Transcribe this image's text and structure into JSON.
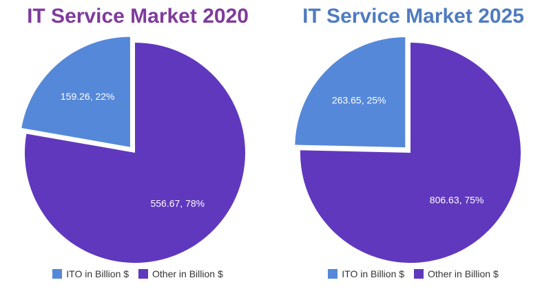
{
  "colors": {
    "ito": "#5588d8",
    "other": "#6038be",
    "title_left": "#7f3a9c",
    "title_right": "#4f7bc0"
  },
  "chart_data": [
    {
      "type": "pie",
      "title": "IT Service Market 2020",
      "slices": [
        {
          "name": "ITO in Billion $",
          "value": 159.26,
          "label": "159.26, 22%",
          "exploded": true
        },
        {
          "name": "Other in Billion $",
          "value": 556.67,
          "label": "556.67, 78%",
          "exploded": false
        }
      ],
      "legend": [
        "ITO in Billion $",
        "Other in Billion $"
      ],
      "legend_position": "bottom"
    },
    {
      "type": "pie",
      "title": "IT Service Market 2025",
      "slices": [
        {
          "name": "ITO in Billion $",
          "value": 263.65,
          "label": "263.65, 25%",
          "exploded": true
        },
        {
          "name": "Other in Billion $",
          "value": 806.63,
          "label": "806.63, 75%",
          "exploded": false
        }
      ],
      "legend": [
        "ITO in Billion $",
        "Other in Billion $"
      ],
      "legend_position": "bottom"
    }
  ]
}
